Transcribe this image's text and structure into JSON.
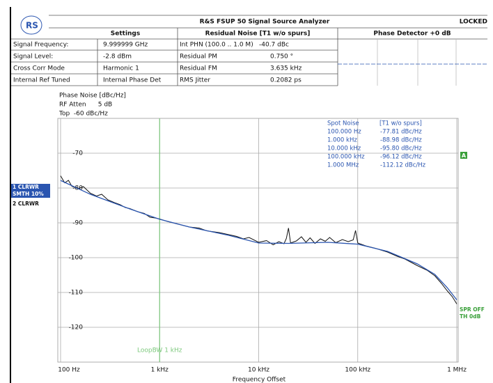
{
  "header": {
    "title": "R&S FSUP 50 Signal Source Analyzer",
    "status": "LOCKED",
    "settings_title": "Settings",
    "residual_title": "Residual Noise [T1 w/o spurs]",
    "detector_title": "Phase Detector +0 dB",
    "settings": [
      [
        "Signal Frequency:",
        "9.999999 GHz"
      ],
      [
        "Signal Level:",
        "-2.8 dBm"
      ],
      [
        "Cross Corr Mode",
        "Harmonic 1"
      ],
      [
        "Internal Ref Tuned",
        "Internal Phase Det"
      ]
    ],
    "residual": [
      [
        "Int PHN (100.0 .. 1.0 M)",
        "-40.7 dBc"
      ],
      [
        "Residual PM",
        "0.750 °"
      ],
      [
        "Residual FM",
        "3.635 kHz"
      ],
      [
        "RMS Jitter",
        "0.2082 ps"
      ]
    ]
  },
  "chart_data": {
    "type": "line",
    "xscale": "log",
    "annotations": [
      "Phase Noise [dBc/Hz]",
      "RF Atten      5 dB",
      "Top  -60 dBc/Hz"
    ],
    "xlabel": "Frequency Offset",
    "xlim": [
      100,
      1000000
    ],
    "ylim": [
      -130,
      -60
    ],
    "xticks": [
      {
        "value": 100,
        "label": "100 Hz"
      },
      {
        "value": 1000,
        "label": "1 kHz"
      },
      {
        "value": 10000,
        "label": "10 kHz"
      },
      {
        "value": 100000,
        "label": "100 kHz"
      },
      {
        "value": 1000000,
        "label": "1 MHz"
      }
    ],
    "yticks": [
      -70,
      -80,
      -90,
      -100,
      -110,
      -120
    ],
    "grid": true,
    "trace_labels": [
      "1 CLRWR",
      "SMTH 10%",
      "2 CLRWR"
    ],
    "series": [
      {
        "name": "2 CLRWR",
        "color": "#111111",
        "x": [
          100,
          110,
          120,
          130,
          150,
          170,
          200,
          230,
          260,
          300,
          350,
          400,
          450,
          500,
          600,
          700,
          800,
          900,
          1000,
          1200,
          1500,
          2000,
          2500,
          3000,
          4000,
          5000,
          6000,
          7000,
          8000,
          10000,
          12000,
          14000,
          16000,
          18000,
          19000,
          20000,
          21000,
          24000,
          27000,
          30000,
          33000,
          37000,
          42000,
          47000,
          52000,
          60000,
          70000,
          80000,
          90000,
          95000,
          100000,
          120000,
          150000,
          200000,
          250000,
          300000,
          400000,
          500000,
          600000,
          700000,
          800000,
          900000,
          1000000
        ],
        "values": [
          -76.5,
          -78.5,
          -77.8,
          -79.5,
          -80.2,
          -79.6,
          -81.5,
          -82.3,
          -81.8,
          -83.4,
          -84.2,
          -84.8,
          -85.6,
          -85.9,
          -86.8,
          -87.3,
          -88.4,
          -88.6,
          -88.9,
          -89.6,
          -90.3,
          -91.2,
          -91.5,
          -92.3,
          -92.8,
          -93.4,
          -93.9,
          -94.6,
          -94.2,
          -95.6,
          -95.1,
          -96.3,
          -95.4,
          -96.0,
          -94.5,
          -91.5,
          -95.8,
          -95.2,
          -94.0,
          -95.6,
          -94.3,
          -95.9,
          -94.6,
          -95.3,
          -94.2,
          -95.7,
          -94.8,
          -95.4,
          -94.9,
          -92.2,
          -95.8,
          -96.6,
          -97.3,
          -98.4,
          -99.6,
          -100.4,
          -102.3,
          -103.6,
          -105.2,
          -107.4,
          -109.5,
          -111.2,
          -113.3
        ]
      },
      {
        "name": "1 CLRWR",
        "color": "#2a55b0",
        "x": [
          100,
          200,
          500,
          1000,
          2000,
          5000,
          10000,
          20000,
          50000,
          100000,
          200000,
          400000,
          600000,
          800000,
          1000000
        ],
        "values": [
          -77.81,
          -81.8,
          -86.0,
          -88.98,
          -91.2,
          -93.6,
          -95.8,
          -95.9,
          -95.6,
          -96.12,
          -98.2,
          -101.8,
          -104.8,
          -108.6,
          -112.12
        ]
      }
    ],
    "loop_bw": {
      "label": "LoopBW 1 kHz",
      "x": 1000,
      "color": "#7cc87c"
    },
    "marker_label": "A",
    "side_labels": [
      "SPR OFF",
      "TH 0dB"
    ],
    "spot_noise": {
      "title": "Spot Noise",
      "subtitle": "[T1 w/o spurs]",
      "rows": [
        [
          "100.000 Hz",
          "-77.81 dBc/Hz"
        ],
        [
          "1.000 kHz",
          "-88.98 dBc/Hz"
        ],
        [
          "10.000 kHz",
          "-95.80 dBc/Hz"
        ],
        [
          "100.000 kHz",
          "-96.12 dBc/Hz"
        ],
        [
          "1.000 MHz",
          "-112.12 dBc/Hz"
        ]
      ]
    }
  }
}
